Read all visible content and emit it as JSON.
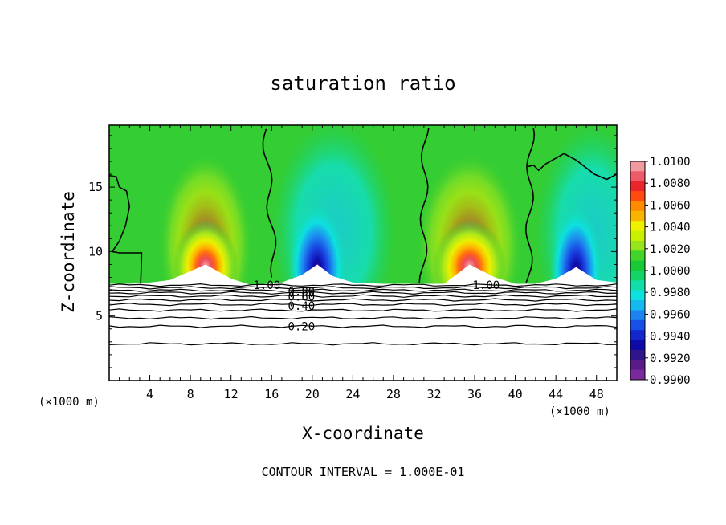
{
  "chart_data": {
    "type": "heatmap",
    "title": "saturation ratio",
    "xlabel": "X-coordinate",
    "ylabel": "Z-coordinate",
    "x_unit": "(×1000 m)",
    "xlim": [
      0,
      50
    ],
    "ylim": [
      0,
      19.8
    ],
    "x_ticks": [
      4,
      8,
      12,
      16,
      20,
      24,
      28,
      32,
      36,
      40,
      44,
      48
    ],
    "y_ticks": [
      5,
      10,
      15
    ],
    "footnote": "CONTOUR INTERVAL = 1.000E-01",
    "colorbar": {
      "ticks": [
        "1.0100",
        "1.0080",
        "1.0060",
        "1.0040",
        "1.0020",
        "1.0000",
        "0.9980",
        "0.9960",
        "0.9940",
        "0.9920",
        "0.9900"
      ],
      "colors": [
        "#f09aa0",
        "#ee5a6a",
        "#e8262c",
        "#ff4a12",
        "#ff8c00",
        "#f7b500",
        "#eef000",
        "#c8f000",
        "#96e41c",
        "#41d52b",
        "#18c836",
        "#14d468",
        "#10e0a8",
        "#0ee0e0",
        "#16b8f0",
        "#1c84f0",
        "#1850e6",
        "#1226cc",
        "#0e0aa8",
        "#30148c",
        "#5a1a8a",
        "#7a2a9a"
      ]
    },
    "contour_labels": [
      {
        "text": "1.00",
        "x": 14.2,
        "y": 7.4
      },
      {
        "text": "0.80",
        "x": 17.6,
        "y": 6.9
      },
      {
        "text": "0.60",
        "x": 17.6,
        "y": 6.5
      },
      {
        "text": "0.40",
        "x": 17.6,
        "y": 5.8
      },
      {
        "text": "0.20",
        "x": 17.6,
        "y": 4.2
      },
      {
        "text": "1.00",
        "x": 35.8,
        "y": 7.4
      }
    ],
    "maxima": [
      {
        "x": 9.5,
        "z": 9.2,
        "value": 1.01,
        "half_width": 3.2
      },
      {
        "x": 35.5,
        "z": 9.2,
        "value": 1.01,
        "half_width": 3.6
      },
      {
        "x": 20.5,
        "z": 9.0,
        "value": 0.99,
        "half_width": 2.2
      },
      {
        "x": 46.0,
        "z": 8.8,
        "value": 0.99,
        "half_width": 2.0
      }
    ]
  }
}
